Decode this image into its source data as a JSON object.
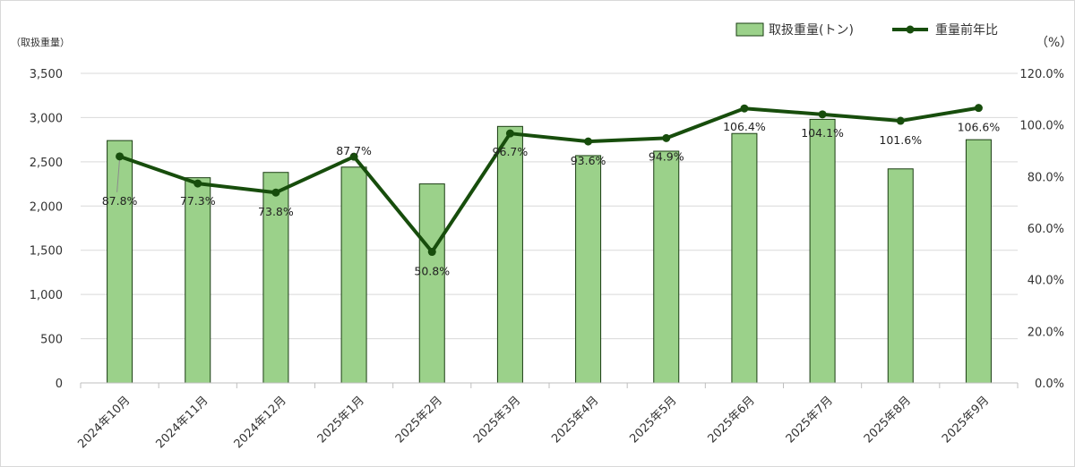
{
  "chart_data": {
    "type": "bar",
    "categories": [
      "2024年10月",
      "2024年11月",
      "2024年12月",
      "2025年1月",
      "2025年2月",
      "2025年3月",
      "2025年4月",
      "2025年5月",
      "2025年6月",
      "2025年7月",
      "2025年8月",
      "2025年9月"
    ],
    "series": [
      {
        "name": "取扱重量(トン)",
        "type": "bar",
        "axis": "left",
        "color": "#9bd18a",
        "values": [
          2740,
          2320,
          2380,
          2440,
          2250,
          2900,
          2570,
          2620,
          2820,
          2980,
          2420,
          2750
        ]
      },
      {
        "name": "重量前年比",
        "type": "line",
        "axis": "right",
        "color": "#174d0c",
        "values": [
          87.8,
          77.3,
          73.8,
          87.7,
          50.8,
          96.7,
          93.6,
          94.9,
          106.4,
          104.1,
          101.6,
          106.6
        ],
        "labels": [
          "87.8%",
          "77.3%",
          "73.8%",
          "87.7%",
          "50.8%",
          "96.7%",
          "93.6%",
          "94.9%",
          "106.4%",
          "104.1%",
          "101.6%",
          "106.6%"
        ]
      }
    ],
    "y_left": {
      "unit_label": "（取扱重量）",
      "range": [
        0,
        3500
      ],
      "ticks": [
        0,
        500,
        1000,
        1500,
        2000,
        2500,
        3000,
        3500
      ],
      "tick_labels": [
        "0",
        "500",
        "1,000",
        "1,500",
        "2,000",
        "2,500",
        "3,000",
        "3,500"
      ]
    },
    "y_right": {
      "unit_label": "（%）",
      "range": [
        0,
        120
      ],
      "ticks": [
        0,
        20,
        40,
        60,
        80,
        100,
        120
      ],
      "tick_labels": [
        "0.0%",
        "20.0%",
        "40.0%",
        "60.0%",
        "80.0%",
        "100.0%",
        "120.0%"
      ]
    },
    "grid": true,
    "legend": "top-right"
  }
}
